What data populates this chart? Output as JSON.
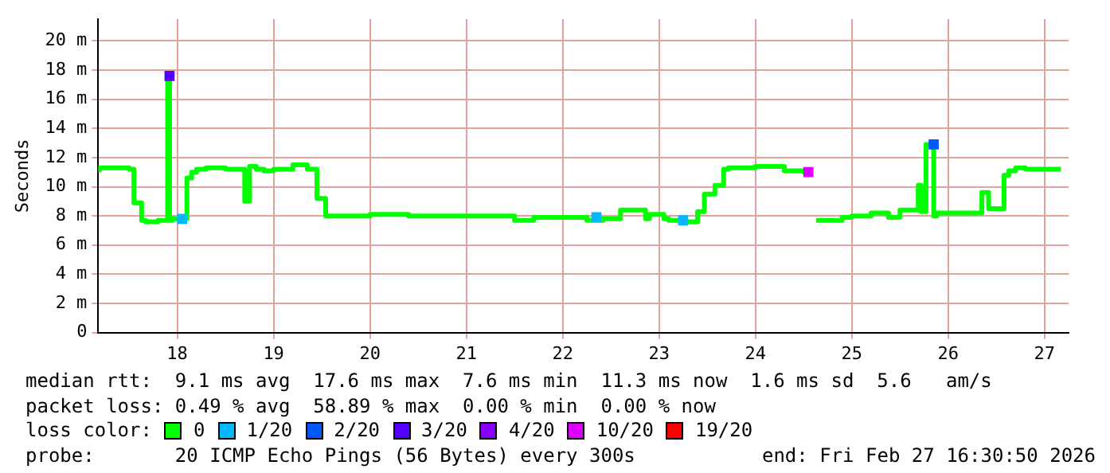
{
  "chart_data": {
    "type": "step",
    "ylabel": "Seconds",
    "legend_title": "loss color:",
    "legend": "bottom",
    "grid": true,
    "marker": "none",
    "xlim": [
      17.18,
      27.25
    ],
    "xticks": [
      18,
      19,
      20,
      21,
      22,
      23,
      24,
      25,
      26,
      27
    ],
    "ylim": [
      0,
      21.5
    ],
    "yticks": [
      0,
      {
        "value": 2,
        "label": "2 m"
      },
      {
        "value": 4,
        "label": "4 m"
      },
      {
        "value": 6,
        "label": "6 m"
      },
      {
        "value": 8,
        "label": "8 m"
      },
      {
        "value": 10,
        "label": "10 m"
      },
      {
        "value": 12,
        "label": "12 m"
      },
      {
        "value": 14,
        "label": "14 m"
      },
      {
        "value": 16,
        "label": "16 m"
      },
      {
        "value": 18,
        "label": "18 m"
      },
      {
        "value": 20,
        "label": "20 m"
      }
    ],
    "series": [
      {
        "name": "0",
        "color": "#00ff00",
        "x": [
          17.19,
          17.3,
          17.5,
          17.55,
          17.63,
          17.67,
          17.8,
          17.9,
          17.92,
          17.95,
          18.0,
          18.1,
          18.15,
          18.2,
          18.3,
          18.5,
          18.7,
          18.75,
          18.82,
          18.9,
          19.0,
          19.2,
          19.35,
          19.45,
          19.54,
          19.58,
          19.8,
          20.0,
          20.4,
          20.8,
          21.2,
          21.5,
          21.58,
          21.7,
          21.9,
          22.0,
          22.25,
          22.42,
          22.6,
          22.86,
          22.9,
          23.05,
          23.1,
          23.25,
          23.4,
          23.47,
          23.58,
          23.67,
          23.72,
          23.8,
          24.0,
          24.3,
          24.5,
          24.55,
          24.59,
          24.63,
          24.7,
          24.9,
          25.0,
          25.2,
          25.38,
          25.5,
          25.69,
          25.72,
          25.77,
          25.85,
          25.88,
          26.0,
          26.2,
          26.35,
          26.42,
          26.5,
          26.58,
          26.63,
          26.7,
          26.8,
          27.0,
          27.17
        ],
        "values": [
          11.0,
          11.3,
          11.3,
          11.2,
          8.9,
          7.7,
          7.6,
          7.7,
          17.6,
          7.7,
          7.8,
          7.8,
          10.6,
          11.0,
          11.2,
          11.3,
          11.2,
          9.0,
          11.4,
          11.2,
          11.1,
          11.2,
          11.5,
          11.2,
          9.2,
          8.0,
          8.0,
          8.0,
          8.1,
          8.0,
          8.0,
          8.0,
          7.7,
          7.7,
          7.9,
          7.9,
          7.9,
          7.7,
          7.8,
          8.4,
          7.8,
          8.1,
          7.8,
          7.7,
          7.6,
          8.3,
          9.5,
          10.1,
          11.2,
          11.3,
          11.3,
          11.4,
          11.1,
          11.0,
          null,
          7.7,
          7.7,
          7.7,
          7.9,
          8.0,
          8.2,
          7.9,
          8.4,
          10.1,
          8.3,
          12.9,
          8.0,
          8.2,
          8.2,
          8.2,
          9.6,
          8.5,
          8.5,
          10.8,
          11.1,
          11.3,
          11.2,
          11.2
        ]
      },
      {
        "name": "1/20",
        "type": "scatter",
        "marker": "square",
        "color": "#00b8ff",
        "x": [
          18.05,
          22.35,
          23.25
        ],
        "values": [
          7.8,
          7.9,
          7.7
        ]
      },
      {
        "name": "2/20",
        "type": "scatter",
        "marker": "square",
        "color": "#0059ff",
        "x": [
          25.85
        ],
        "values": [
          12.9
        ]
      },
      {
        "name": "3/20",
        "type": "scatter",
        "marker": "square",
        "color": "#5500ff",
        "x": [
          17.92
        ],
        "values": [
          17.6
        ]
      },
      {
        "name": "4/20",
        "type": "scatter",
        "marker": "square",
        "color": "#8800ff"
      },
      {
        "name": "10/20",
        "type": "scatter",
        "marker": "square",
        "color": "#dd00ff",
        "x": [
          24.55
        ],
        "values": [
          11.0
        ]
      },
      {
        "name": "19/20",
        "type": "scatter",
        "marker": "square",
        "color": "#ff0000"
      }
    ],
    "annotations": [
      "median rtt:  9.1 ms avg  17.6 ms max  7.6 ms min  11.3 ms now  1.6 ms sd  5.6   am/s",
      "packet loss: 0.49 % avg  58.89 % max  0.00 % min  0.00 % now",
      "probe:       20 ICMP Echo Pings (56 Bytes) every 300s",
      "end: Fri Feb 27 16:30:50 2026"
    ]
  }
}
